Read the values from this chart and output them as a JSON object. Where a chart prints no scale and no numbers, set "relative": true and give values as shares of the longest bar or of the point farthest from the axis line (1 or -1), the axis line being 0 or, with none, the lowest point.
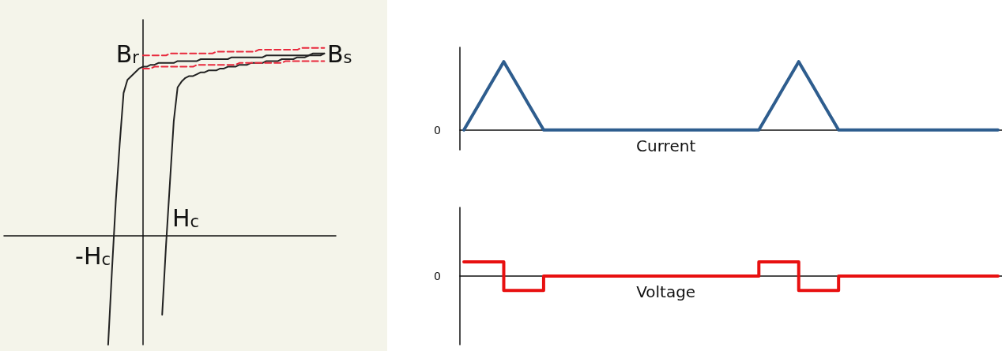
{
  "chart_data": [
    {
      "type": "line",
      "relative": true,
      "grid": false,
      "marker": "none",
      "categories": [
        null,
        null,
        null,
        null,
        null,
        null,
        null,
        null,
        null,
        null,
        null,
        null,
        null,
        null,
        null,
        null,
        null,
        null,
        null,
        null,
        null,
        null,
        null,
        null,
        null,
        null,
        null,
        null,
        null,
        null,
        null,
        null,
        null,
        null,
        null,
        null,
        null,
        null,
        null,
        null,
        null,
        null,
        null,
        null,
        null,
        null,
        null,
        null,
        null,
        null,
        null,
        null,
        null,
        null,
        null,
        null,
        null,
        null,
        null,
        null,
        null,
        null,
        null,
        null,
        null,
        null,
        null,
        null,
        null,
        null,
        null,
        null,
        null,
        null,
        null,
        null,
        null,
        null,
        null,
        null,
        null,
        null,
        null,
        null,
        null,
        null,
        null
      ],
      "series": [
        {
          "color": "#222222",
          "line_style": "solid",
          "values": [
            null,
            null,
            null,
            null,
            null,
            null,
            null,
            null,
            null,
            null,
            null,
            null,
            null,
            null,
            null,
            null,
            null,
            null,
            null,
            null,
            null,
            null,
            null,
            null,
            null,
            null,
            null,
            -0.58,
            -0.18,
            0.19,
            0.49,
            0.76,
            0.83,
            0.85,
            0.87,
            0.89,
            0.9,
            0.9,
            0.91,
            0.91,
            0.92,
            0.92,
            0.92,
            0.92,
            0.92,
            0.93,
            0.93,
            0.93,
            0.93,
            0.93,
            0.93,
            0.94,
            0.94,
            0.94,
            0.94,
            0.94,
            0.94,
            0.94,
            0.94,
            0.95,
            0.95,
            0.95,
            0.95,
            0.95,
            0.95,
            0.95,
            0.95,
            0.95,
            0.96,
            0.96,
            0.96,
            0.96,
            0.96,
            0.96,
            0.96,
            0.96,
            0.96,
            0.96,
            0.96,
            0.96,
            0.97,
            0.97,
            0.97,
            0.97,
            null,
            null,
            null
          ]
        },
        {
          "color": "#222222",
          "line_style": "solid",
          "values": [
            null,
            null,
            null,
            null,
            null,
            null,
            null,
            null,
            null,
            null,
            null,
            null,
            null,
            null,
            null,
            null,
            null,
            null,
            null,
            null,
            null,
            null,
            null,
            null,
            null,
            null,
            null,
            null,
            null,
            null,
            null,
            null,
            null,
            null,
            null,
            null,
            null,
            null,
            null,
            null,
            null,
            -0.42,
            -0.05,
            0.28,
            0.61,
            0.79,
            0.82,
            0.84,
            0.85,
            0.85,
            0.86,
            0.87,
            0.87,
            0.88,
            0.88,
            0.88,
            0.89,
            0.89,
            0.9,
            0.9,
            0.9,
            0.91,
            0.91,
            0.91,
            0.92,
            0.92,
            0.92,
            0.92,
            0.93,
            0.93,
            0.93,
            0.93,
            0.94,
            0.94,
            0.94,
            0.94,
            0.95,
            0.95,
            0.95,
            0.96,
            0.96,
            0.96,
            0.96,
            0.97,
            null,
            null,
            null
          ]
        },
        {
          "color": "#e8283c",
          "line_style": "dashed",
          "values": [
            null,
            null,
            null,
            null,
            null,
            null,
            null,
            null,
            null,
            null,
            null,
            null,
            null,
            null,
            null,
            null,
            null,
            null,
            null,
            null,
            null,
            null,
            null,
            null,
            null,
            null,
            null,
            null,
            null,
            null,
            null,
            null,
            null,
            null,
            null,
            null,
            0.96,
            0.96,
            0.96,
            0.96,
            0.96,
            0.96,
            0.96,
            0.97,
            0.97,
            0.97,
            0.97,
            0.97,
            0.97,
            0.97,
            0.97,
            0.97,
            0.97,
            0.97,
            0.97,
            0.98,
            0.98,
            0.98,
            0.98,
            0.98,
            0.98,
            0.98,
            0.98,
            0.98,
            0.98,
            0.98,
            0.99,
            0.99,
            0.99,
            0.99,
            0.99,
            0.99,
            0.99,
            0.99,
            0.99,
            0.99,
            0.99,
            1.0,
            1.0,
            1.0,
            1.0,
            1.0,
            1.0,
            1.0,
            null,
            null,
            null
          ]
        },
        {
          "color": "#e8283c",
          "line_style": "dashed",
          "values": [
            null,
            null,
            null,
            null,
            null,
            null,
            null,
            null,
            null,
            null,
            null,
            null,
            null,
            null,
            null,
            null,
            null,
            null,
            null,
            null,
            null,
            null,
            null,
            null,
            null,
            null,
            null,
            null,
            null,
            null,
            null,
            null,
            null,
            null,
            null,
            null,
            0.89,
            0.89,
            0.89,
            0.9,
            0.9,
            0.9,
            0.9,
            0.9,
            0.9,
            0.9,
            0.9,
            0.9,
            0.9,
            0.9,
            0.91,
            0.91,
            0.91,
            0.91,
            0.91,
            0.91,
            0.91,
            0.91,
            0.91,
            0.91,
            0.91,
            0.92,
            0.92,
            0.92,
            0.92,
            0.92,
            0.92,
            0.92,
            0.92,
            0.92,
            0.92,
            0.92,
            0.92,
            0.93,
            0.93,
            0.93,
            0.93,
            0.93,
            0.93,
            0.93,
            0.93,
            0.93,
            0.93,
            0.93,
            null,
            null,
            null
          ]
        }
      ],
      "annotations": [
        "B$_{r}$",
        "B$_{s}$",
        "H$_{c}$",
        "-H$_{c}$"
      ]
    },
    {
      "type": "line",
      "relative": true,
      "xlabel": "Current",
      "grid": false,
      "marker": "none",
      "categories": [
        null,
        null,
        null,
        null,
        null,
        null,
        null,
        null,
        null,
        null,
        null,
        null,
        null,
        null,
        null,
        null,
        null,
        null,
        null,
        null,
        null,
        null,
        null,
        null,
        null,
        null,
        null,
        null,
        null,
        null,
        null,
        null,
        null,
        null,
        null,
        null,
        null,
        null,
        null,
        null,
        null,
        null,
        null,
        null,
        null,
        null,
        null,
        null,
        null,
        null,
        null,
        null,
        null,
        null,
        null,
        null,
        null,
        null,
        null,
        null,
        null,
        null,
        null,
        null,
        null,
        null,
        null,
        null
      ],
      "series": [
        {
          "color": "#2e5d8e",
          "values": [
            0,
            0.2,
            0.4,
            0.6,
            0.8,
            1,
            0.8,
            0.6,
            0.4,
            0.2,
            0,
            0,
            0,
            0,
            0,
            0,
            0,
            0,
            0,
            0,
            0,
            0,
            0,
            0,
            0,
            0,
            0,
            0,
            0,
            0,
            0,
            0,
            0,
            0,
            0,
            0,
            0,
            0,
            0.2,
            0.4,
            0.6,
            0.8,
            1,
            0.8,
            0.6,
            0.4,
            0.2,
            0,
            0,
            0,
            0,
            0,
            0,
            0,
            0,
            0,
            0,
            0,
            0,
            0,
            0,
            0,
            0,
            0,
            0,
            0,
            0,
            0
          ]
        }
      ],
      "annotations": [
        "0"
      ]
    },
    {
      "type": "step",
      "relative": true,
      "xlabel": "Voltage",
      "grid": false,
      "marker": "none",
      "categories": [
        null,
        null,
        null,
        null,
        null,
        null,
        null,
        null,
        null,
        null,
        null,
        null,
        null,
        null,
        null,
        null,
        null,
        null,
        null,
        null,
        null,
        null,
        null,
        null,
        null,
        null,
        null,
        null,
        null,
        null,
        null,
        null,
        null,
        null,
        null,
        null,
        null,
        null,
        null,
        null,
        null,
        null,
        null,
        null,
        null,
        null,
        null,
        null,
        null,
        null,
        null,
        null,
        null,
        null,
        null,
        null,
        null,
        null,
        null,
        null,
        null,
        null,
        null,
        null,
        null,
        null,
        null,
        null
      ],
      "series": [
        {
          "color": "#e81010",
          "values": [
            1,
            1,
            1,
            1,
            1,
            -1,
            -1,
            -1,
            -1,
            -1,
            0,
            0,
            0,
            0,
            0,
            0,
            0,
            0,
            0,
            0,
            0,
            0,
            0,
            0,
            0,
            0,
            0,
            0,
            0,
            0,
            0,
            0,
            0,
            0,
            0,
            0,
            0,
            1,
            1,
            1,
            1,
            1,
            -1,
            -1,
            -1,
            -1,
            -1,
            0,
            0,
            0,
            0,
            0,
            0,
            0,
            0,
            0,
            0,
            0,
            0,
            0,
            0,
            0,
            0,
            0,
            0,
            0,
            0,
            0
          ]
        }
      ],
      "annotations": [
        "0"
      ]
    }
  ]
}
